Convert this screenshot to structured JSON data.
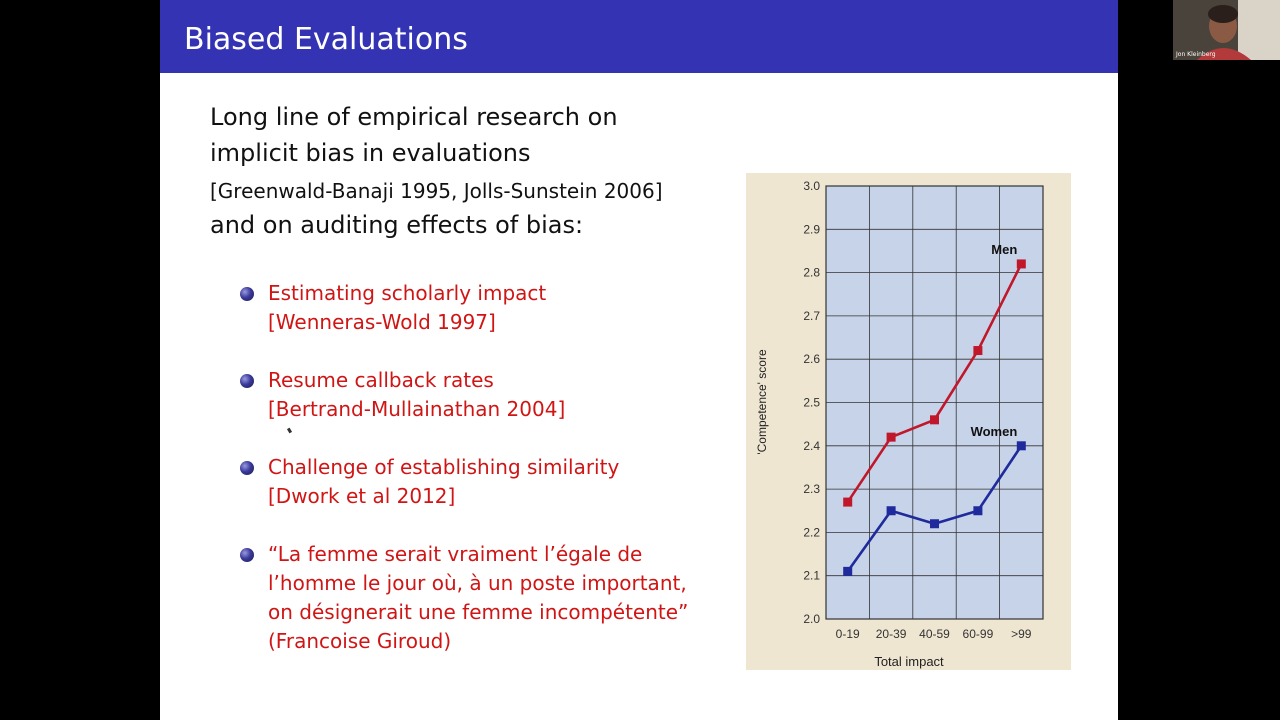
{
  "slide": {
    "title": "Biased Evaluations",
    "intro_line1": "Long line of empirical research on",
    "intro_line2": "implicit bias in evaluations",
    "intro_cite": "[Greenwald-Banaji 1995, Jolls-Sunstein 2006]",
    "intro_line4": "and on auditing effects of bias:",
    "bullets": [
      {
        "line1": "Estimating scholarly impact",
        "line2": "[Wenneras-Wold 1997]"
      },
      {
        "line1": "Resume callback rates",
        "line2": "[Bertrand-Mullainathan 2004]"
      },
      {
        "line1": "Challenge of establishing similarity",
        "line2": "[Dwork et al 2012]"
      },
      {
        "line1": "“La femme serait vraiment l’égale de",
        "line2": "l’homme le jour où, à un poste important,",
        "line3": "on désignerait une femme incompétente”",
        "line4": "(Francoise Giroud)"
      }
    ],
    "colors": {
      "title_bar": "#3333b3",
      "bullet_text": "#d01515",
      "men": "#c0182a",
      "women": "#1f2a9c",
      "plot_bg": "#c7d3e8",
      "chart_bg": "#efe6d2"
    }
  },
  "chart_data": {
    "type": "line",
    "categories": [
      "0-19",
      "20-39",
      "40-59",
      "60-99",
      ">99"
    ],
    "series": [
      {
        "name": "Men",
        "values": [
          2.27,
          2.42,
          2.46,
          2.62,
          2.82
        ]
      },
      {
        "name": "Women",
        "values": [
          2.11,
          2.25,
          2.22,
          2.25,
          2.4
        ]
      }
    ],
    "xlabel": "Total impact",
    "ylabel": "'Competence' score",
    "ylim": [
      2.0,
      3.0
    ],
    "yticks": [
      "2.0",
      "2.1",
      "2.2",
      "2.3",
      "2.4",
      "2.5",
      "2.6",
      "2.7",
      "2.8",
      "2.9",
      "3.0"
    ],
    "grid": true,
    "legend": "inline-labels"
  },
  "webcam": {
    "name": "Jon Kleinberg"
  }
}
